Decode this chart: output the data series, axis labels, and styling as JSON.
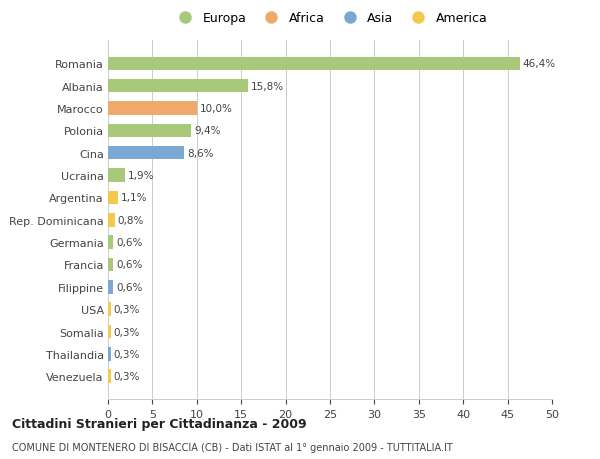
{
  "categories": [
    "Venezuela",
    "Thailandia",
    "Somalia",
    "USA",
    "Filippine",
    "Francia",
    "Germania",
    "Rep. Dominicana",
    "Argentina",
    "Ucraina",
    "Cina",
    "Polonia",
    "Marocco",
    "Albania",
    "Romania"
  ],
  "values": [
    0.3,
    0.3,
    0.3,
    0.3,
    0.6,
    0.6,
    0.6,
    0.8,
    1.1,
    1.9,
    8.6,
    9.4,
    10.0,
    15.8,
    46.4
  ],
  "colors": [
    "#f2c94c",
    "#7aa8d2",
    "#f2c94c",
    "#f2c94c",
    "#7aa8d2",
    "#a8c87a",
    "#a8c87a",
    "#f2c94c",
    "#f2c94c",
    "#a8c87a",
    "#7aa8d2",
    "#a8c87a",
    "#f0a96a",
    "#a8c87a",
    "#a8c87a"
  ],
  "labels": [
    "0,3%",
    "0,3%",
    "0,3%",
    "0,3%",
    "0,6%",
    "0,6%",
    "0,6%",
    "0,8%",
    "1,1%",
    "1,9%",
    "8,6%",
    "9,4%",
    "10,0%",
    "15,8%",
    "46,4%"
  ],
  "legend_labels": [
    "Europa",
    "Africa",
    "Asia",
    "America"
  ],
  "legend_colors": [
    "#a8c87a",
    "#f0a96a",
    "#7aa8d2",
    "#f2c94c"
  ],
  "title": "Cittadini Stranieri per Cittadinanza - 2009",
  "subtitle": "COMUNE DI MONTENERO DI BISACCIA (CB) - Dati ISTAT al 1° gennaio 2009 - TUTTITALIA.IT",
  "xlim": [
    0,
    50
  ],
  "xticks": [
    0,
    5,
    10,
    15,
    20,
    25,
    30,
    35,
    40,
    45,
    50
  ],
  "background_color": "#ffffff",
  "bar_height": 0.6,
  "grid_color": "#cccccc",
  "font_color": "#444444"
}
